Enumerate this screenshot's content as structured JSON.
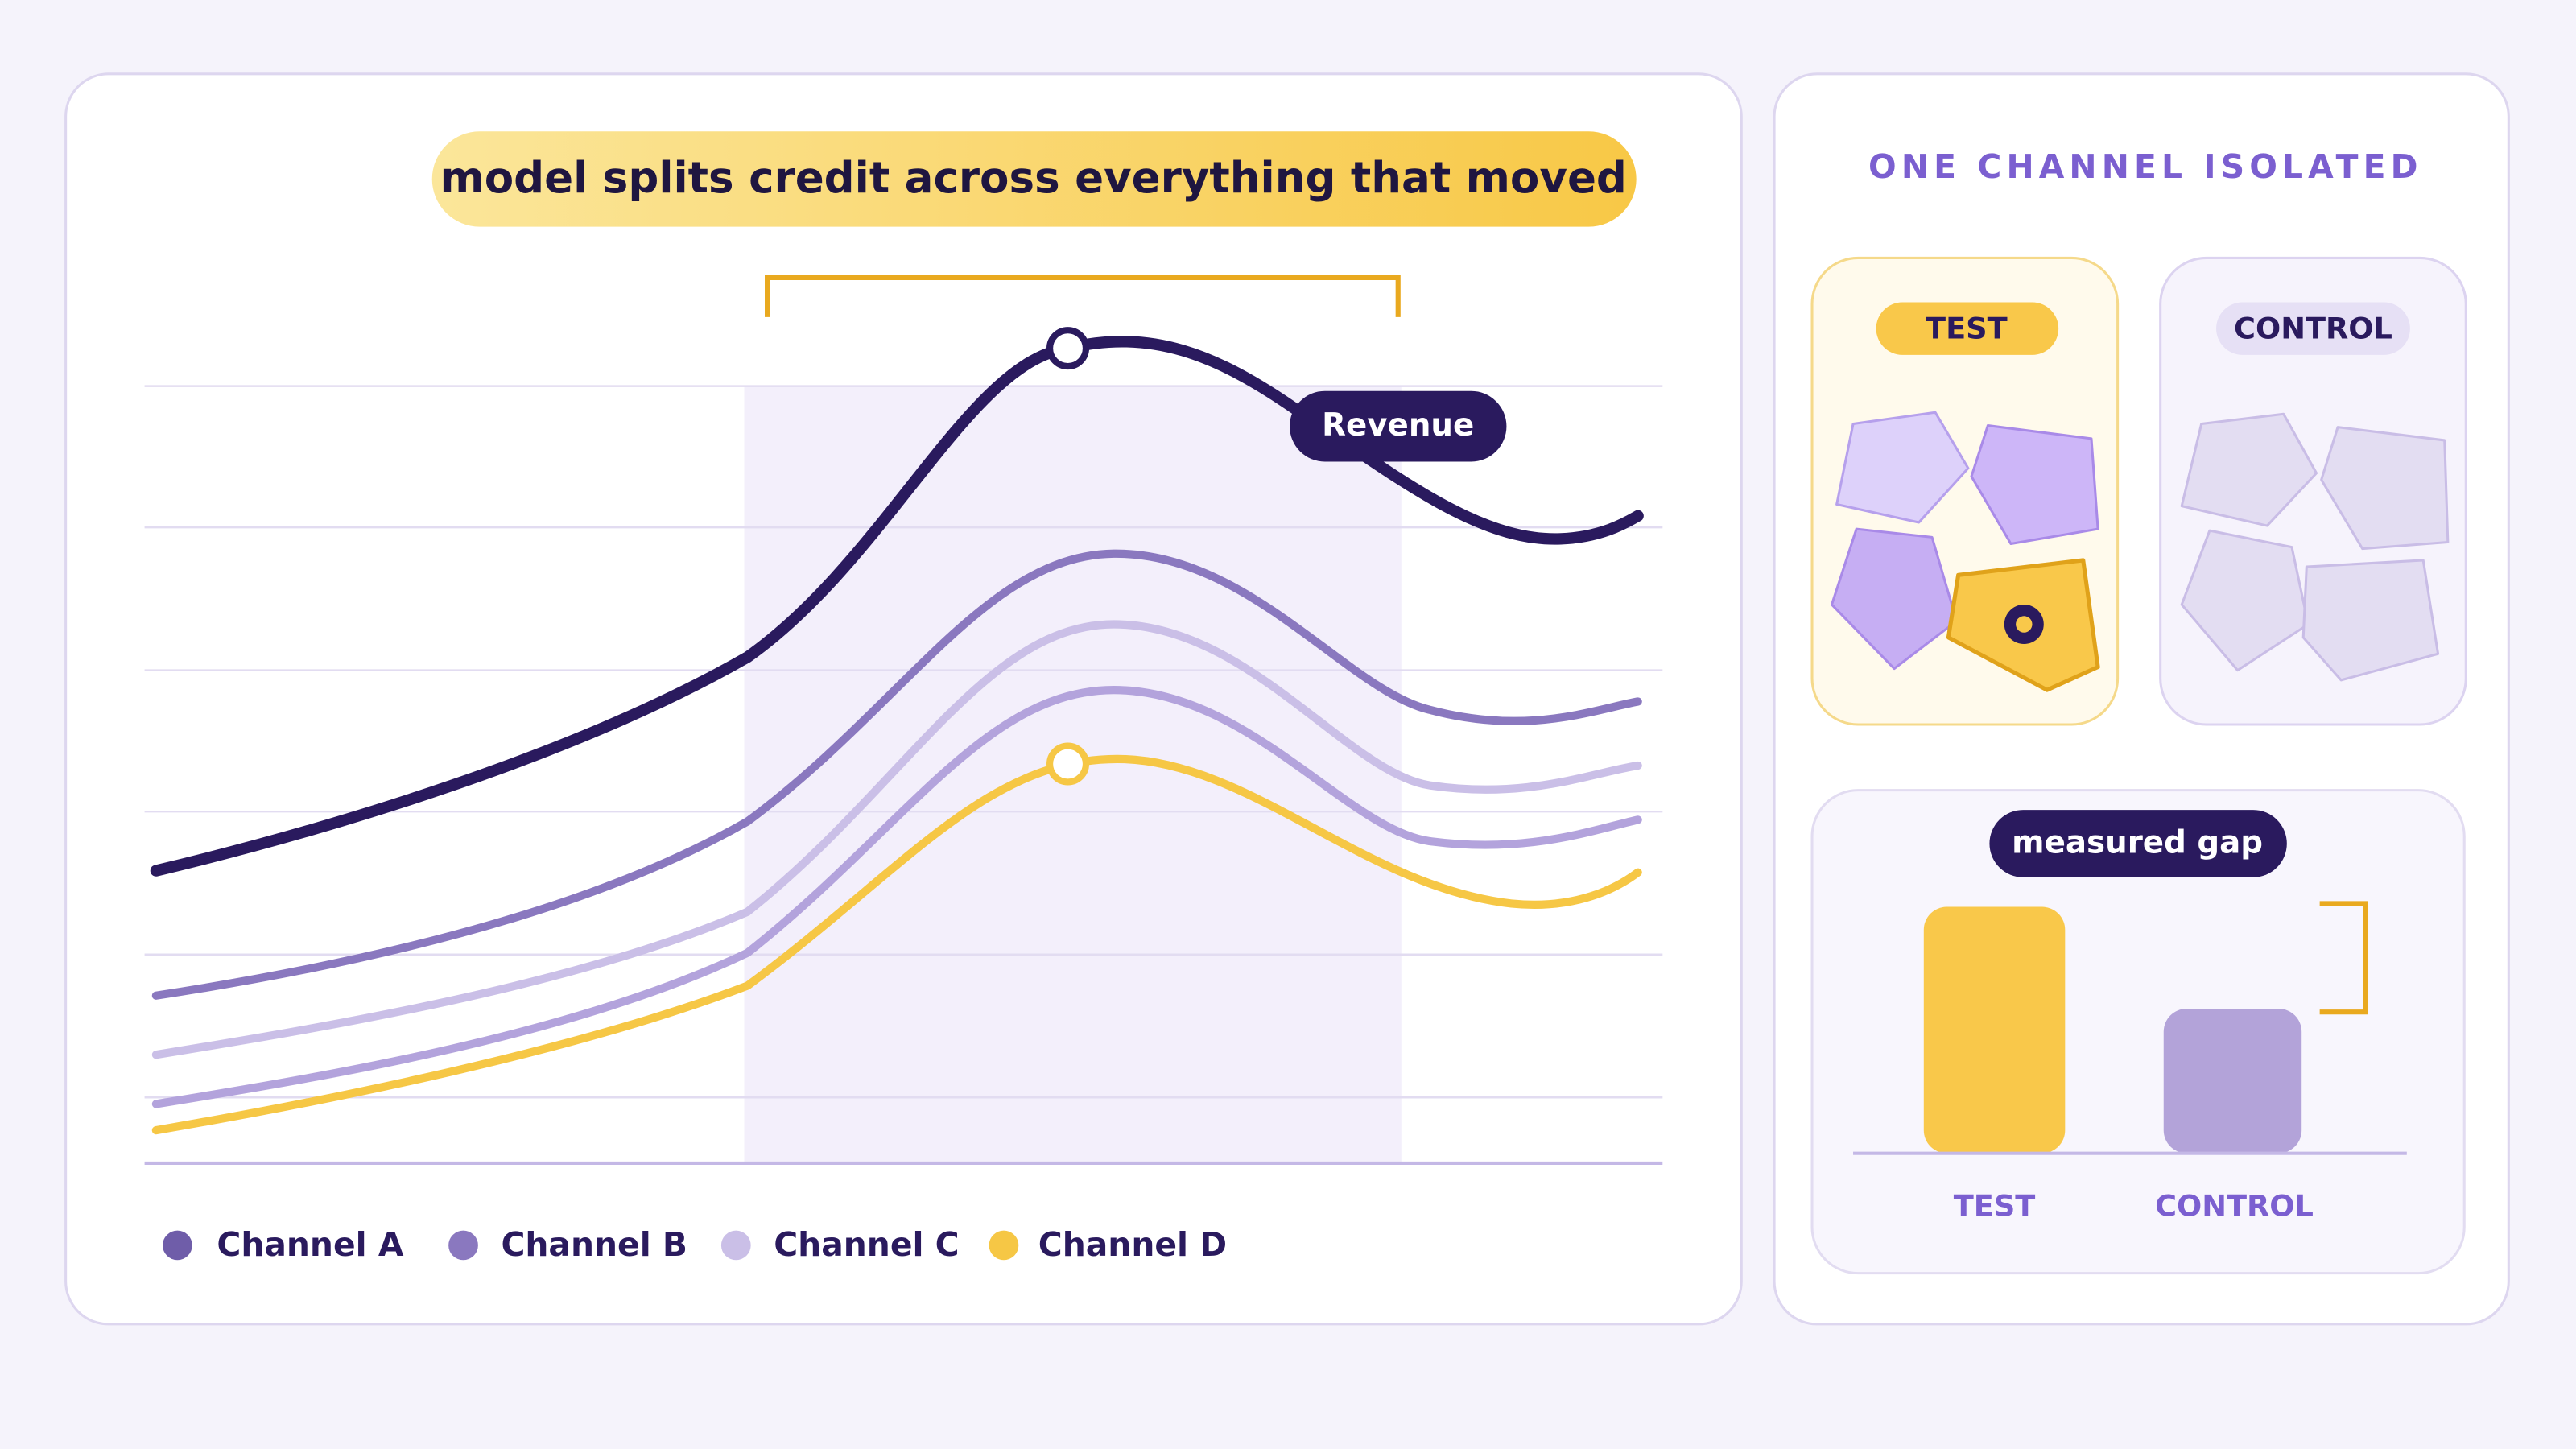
{
  "callout": "model splits credit across everything that moved",
  "revenue_label": "Revenue",
  "legend": [
    "Channel A",
    "Channel B",
    "Channel C",
    "Channel D"
  ],
  "panel": {
    "title": "ONE CHANNEL ISOLATED",
    "test_pill": "TEST",
    "control_pill": "CONTROL",
    "gap_label": "measured gap",
    "bar_labels": [
      "TEST",
      "CONTROL"
    ]
  }
}
